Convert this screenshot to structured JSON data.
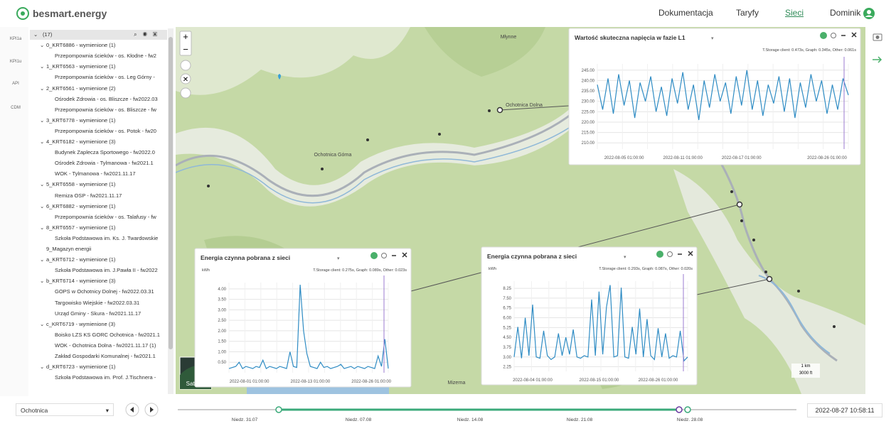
{
  "header": {
    "logo": "besmart.energy",
    "nav": [
      "Dokumentacja",
      "Taryfy",
      "Sieci",
      "Dominik"
    ]
  },
  "side_tabs": [
    "KPI1a",
    "KPI1u",
    "API",
    "CDM"
  ],
  "tree": {
    "root": "(17)",
    "groups": [
      {
        "label": "0_KRT6886 - wymienione (1)",
        "items": [
          "Przepompownia ścieków - os. Kłodne - fw2"
        ]
      },
      {
        "label": "1_KRT6563 - wymienione (1)",
        "items": [
          "Przepompownia ścieków - os. Leg Górny - "
        ]
      },
      {
        "label": "2_KRT6561 - wymienione (2)",
        "items": [
          "Ośrodek Zdrowia - os. Bliszcze - fw2022.03",
          "Przepompownia ścieków - os. Bliszcze - fw"
        ]
      },
      {
        "label": "3_KRT6778 - wymienione (1)",
        "items": [
          "Przepompownia ścieków - os. Potok - fw20"
        ]
      },
      {
        "label": "4_KRT6182 - wymienione (3)",
        "items": [
          "Budynek Zaplecza Sportowego - fw2022.0",
          "Ośrodek Zdrowia - Tylmanowa - fw2021.1",
          "WOK - Tylmanowa - fw2021.11.17"
        ]
      },
      {
        "label": "5_KRT6558 - wymienione (1)",
        "items": [
          "Remiza OSP - fw2021.11.17"
        ]
      },
      {
        "label": "6_KRT6882 - wymienione (1)",
        "items": [
          "Przepompownia ścieków - os. Talafusy - fw"
        ]
      },
      {
        "label": "8_KRT6557 - wymienione (1)",
        "items": [
          "Szkoła Podstawowa im. Ks. J. Twardowskie"
        ]
      },
      {
        "label": "9_Magazyn energii"
      },
      {
        "label": "a_KRT6712 - wymienione (1)",
        "items": [
          "Szkoła Podstawowa im. J.Pawła II - fw2022"
        ]
      },
      {
        "label": "b_KRT6714 - wymienione (3)",
        "items": [
          "GOPS w Ochotnicy Dolnej - fw2022.03.31",
          "Targowisko Wiejskie - fw2022.03.31",
          "Urząd Gminy - Skura - fw2021.11.17"
        ]
      },
      {
        "label": "c_KRT6719 - wymienione (3)",
        "items": [
          "Boisko LZS KS GORC Ochotnica - fw2021.1",
          "WOK - Ochotnica Dolna - fw2021.11.17 (1)",
          "Zakład Gospodarki Komunalnej - fw2021.1"
        ]
      },
      {
        "label": "d_KRT6723 - wymienione (1)",
        "items": [
          "Szkoła Podstawowa im. Prof. J.Tischnera - "
        ]
      }
    ]
  },
  "map": {
    "places": [
      "Młynne",
      "Ochotnica Dolna",
      "Ochotnica Górna",
      "Mizerna"
    ],
    "layer": "Satelita",
    "scale": [
      "1 km",
      "3000 ft"
    ]
  },
  "chart_data": [
    {
      "type": "line",
      "title": "Wartość skuteczna napięcia w fazie L1",
      "timing": "T.Storage client: 0.473s, Graph: 0.345s, Other: 0.061s",
      "color": "#2f8cc4",
      "categories": [
        null,
        null,
        null,
        null,
        null,
        "2022-08-05 01:00:00",
        null,
        null,
        null,
        null,
        null,
        null,
        null,
        null,
        null,
        null,
        "2022-08-11 01:00:00",
        null,
        null,
        null,
        null,
        null,
        null,
        null,
        null,
        null,
        null,
        "2022-08-17 01:00:00",
        null,
        null,
        null,
        null,
        null,
        null,
        null,
        null,
        null,
        null,
        null,
        null,
        null,
        null,
        null,
        "2022-08-26 01:00:00",
        null,
        null,
        null,
        null
      ],
      "values": [
        238,
        226,
        241,
        224,
        243,
        228,
        240,
        222,
        239,
        230,
        242,
        225,
        237,
        223,
        241,
        229,
        244,
        226,
        238,
        221,
        240,
        227,
        243,
        230,
        239,
        224,
        242,
        228,
        245,
        226,
        240,
        223,
        238,
        229,
        242,
        225,
        241,
        222,
        239,
        227,
        243,
        230,
        240,
        224,
        238,
        226,
        241,
        233
      ],
      "ylim": [
        207,
        248
      ],
      "yticks": [
        {
          "value": 210,
          "label": "210.00"
        },
        {
          "value": 215,
          "label": "215.00"
        },
        {
          "value": 220,
          "label": "220.00"
        },
        {
          "value": 225,
          "label": "225.00"
        },
        {
          "value": 230,
          "label": "230.00"
        },
        {
          "value": 235,
          "label": "235.00"
        },
        {
          "value": 240,
          "label": "240.00"
        },
        {
          "value": 245,
          "label": "245.00"
        }
      ],
      "grid": true
    },
    {
      "type": "line",
      "title": "Energia czynna pobrana z sieci",
      "unit": "kWh",
      "timing": "T.Storage client: 0.275s, Graph: 0.089s, Other: 0.023s",
      "color": "#2f8cc4",
      "categories": [
        null,
        null,
        null,
        null,
        null,
        null,
        "2022-08-01 01:00:00",
        null,
        null,
        null,
        null,
        null,
        null,
        null,
        null,
        null,
        null,
        null,
        null,
        null,
        null,
        null,
        null,
        null,
        "2022-08-13 01:00:00",
        null,
        null,
        null,
        null,
        null,
        null,
        null,
        null,
        null,
        null,
        null,
        null,
        null,
        null,
        null,
        null,
        null,
        "2022-08-26 01:00:00",
        null,
        null,
        null,
        null,
        null
      ],
      "values": [
        0.2,
        0.25,
        0.3,
        0.5,
        0.2,
        0.3,
        0.25,
        0.2,
        0.3,
        0.25,
        0.6,
        0.2,
        0.3,
        0.25,
        0.2,
        0.3,
        0.25,
        0.2,
        1.0,
        0.3,
        0.25,
        4.2,
        2.0,
        0.9,
        0.3,
        0.25,
        0.2,
        0.5,
        0.25,
        0.3,
        0.2,
        0.25,
        0.3,
        0.4,
        0.2,
        0.25,
        0.3,
        0.2,
        0.3,
        0.25,
        0.2,
        0.3,
        0.25,
        0.2,
        0.8,
        0.3,
        1.6,
        0.2
      ],
      "ylim": [
        0,
        4.3
      ],
      "yticks": [
        {
          "value": 0.5,
          "label": "0.50"
        },
        {
          "value": 1,
          "label": "1.00"
        },
        {
          "value": 1.5,
          "label": "1.50"
        },
        {
          "value": 2,
          "label": "2.00"
        },
        {
          "value": 2.5,
          "label": "2.50"
        },
        {
          "value": 3,
          "label": "3.00"
        },
        {
          "value": 3.5,
          "label": "3.50"
        },
        {
          "value": 4,
          "label": "4.00"
        }
      ],
      "grid": true
    },
    {
      "type": "line",
      "title": "Energia czynna pobrana z sieci",
      "unit": "kWh",
      "timing": "T.Storage client: 0.293s, Graph: 0.087s, Other: 0.020s",
      "color": "#2f8cc4",
      "categories": [
        null,
        null,
        null,
        null,
        null,
        "2022-08-04 01:00:00",
        null,
        null,
        null,
        null,
        null,
        null,
        null,
        null,
        null,
        null,
        null,
        null,
        null,
        null,
        null,
        null,
        null,
        "2022-08-15 01:00:00",
        null,
        null,
        null,
        null,
        null,
        null,
        null,
        null,
        null,
        null,
        null,
        null,
        null,
        null,
        null,
        "2022-08-26 01:00:00",
        null,
        null,
        null,
        null,
        null,
        null,
        null,
        null
      ],
      "values": [
        3.0,
        5.3,
        2.9,
        6.0,
        3.1,
        7.0,
        3.0,
        2.9,
        5.0,
        3.1,
        2.8,
        3.0,
        4.8,
        3.1,
        4.5,
        3.2,
        5.1,
        3.0,
        2.9,
        3.1,
        3.0,
        7.4,
        3.1,
        8.0,
        3.2,
        6.8,
        8.5,
        3.0,
        3.1,
        8.3,
        3.0,
        2.9,
        5.3,
        3.2,
        6.7,
        3.0,
        5.9,
        3.1,
        2.8,
        5.2,
        3.0,
        4.8,
        2.9,
        3.1,
        3.0,
        5.0,
        2.7,
        3.0
      ],
      "ylim": [
        1.9,
        8.8
      ],
      "yticks": [
        {
          "value": 2.25,
          "label": "2.25"
        },
        {
          "value": 3,
          "label": "3.00"
        },
        {
          "value": 3.75,
          "label": "3.75"
        },
        {
          "value": 4.5,
          "label": "4.50"
        },
        {
          "value": 5.25,
          "label": "5.25"
        },
        {
          "value": 6,
          "label": "6.00"
        },
        {
          "value": 6.75,
          "label": "6.75"
        },
        {
          "value": 7.5,
          "label": "7.50"
        },
        {
          "value": 8.25,
          "label": "8.25"
        }
      ],
      "grid": true
    }
  ],
  "footer": {
    "location": "Ochotnica",
    "timeline": [
      "Niedz. 31.07",
      "Niedz. 07.08",
      "Niedz. 14.08",
      "Niedz. 21.08",
      "Niedz. 28.08"
    ],
    "datetime": "2022-08-27 10:58:11"
  }
}
